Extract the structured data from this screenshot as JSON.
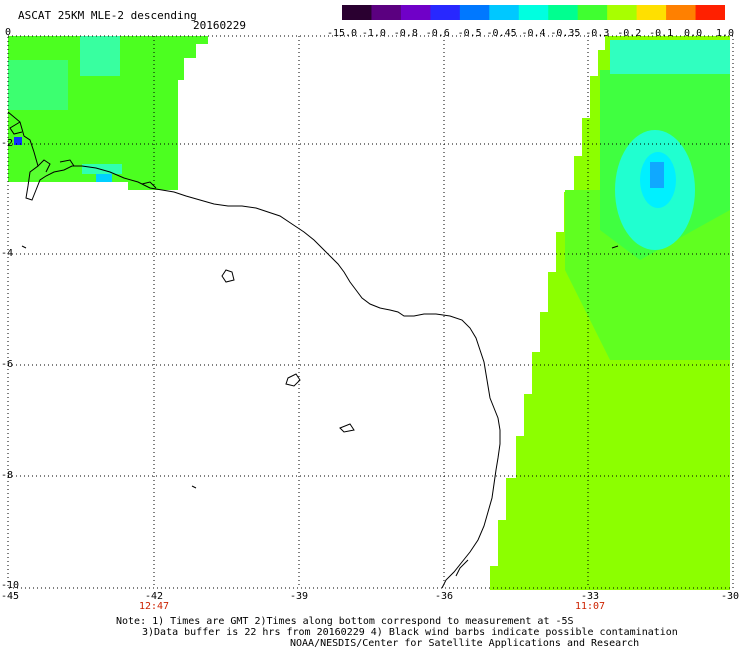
{
  "title": "ASCAT 25KM MLE-2 descending",
  "date": "20160229",
  "colorbar": {
    "labels": [
      "-15.0",
      "-1.0",
      "-0.8",
      "-0.6",
      "-0.5",
      "-0.45",
      "-0.4",
      "-0.35",
      "-0.3",
      "-0.2",
      "-0.1",
      "0.0",
      "1.0"
    ],
    "colors": [
      "#2a0030",
      "#5b0080",
      "#7000c8",
      "#2828ff",
      "#0078ff",
      "#00c8ff",
      "#00ffe0",
      "#00ff90",
      "#40ff30",
      "#a8ff00",
      "#ffe000",
      "#ff8000",
      "#ff2000"
    ]
  },
  "axes": {
    "x_ticks": [
      "-45",
      "-42",
      "-39",
      "-36",
      "-33",
      "-30"
    ],
    "y_ticks": [
      "0",
      "-2",
      "-4",
      "-6",
      "-8",
      "-10"
    ],
    "times": [
      "12:47",
      "11:07"
    ],
    "x_range": [
      -45,
      -30
    ],
    "y_range": [
      -10,
      0
    ],
    "grid": true
  },
  "notes": {
    "line1": "Note: 1) Times are GMT 2)Times along bottom correspond to measurement at -5S",
    "line2": "3)Data buffer is 22 hrs from 20160229 4) Black wind barbs indicate possible contamination",
    "line3": "NOAA/NESDIS/Center for Satellite Applications and Research"
  }
}
